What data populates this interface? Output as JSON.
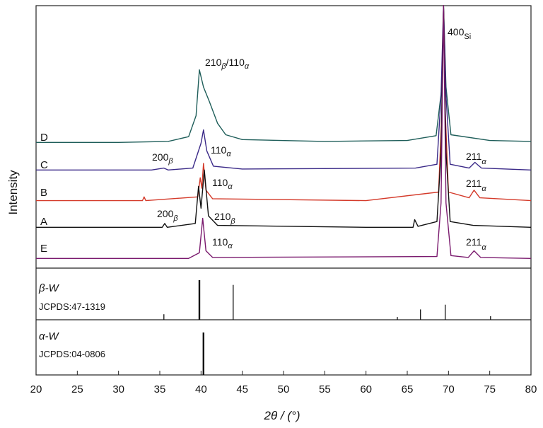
{
  "chart_data": {
    "type": "line",
    "ylabel": "Intensity",
    "xlabel": "2θ / (°)",
    "xlim": [
      20,
      80
    ],
    "xticks": [
      "20",
      "25",
      "30",
      "35",
      "40",
      "45",
      "50",
      "55",
      "60",
      "65",
      "70",
      "75",
      "80"
    ],
    "series": [
      {
        "name": "D",
        "color": "#1f5e5a",
        "peaks": [
          [
            39.8,
            60,
            0.35
          ],
          [
            40.5,
            38,
            0.9
          ],
          [
            42,
            12,
            1.5
          ],
          [
            69.4,
            300,
            0.12
          ],
          [
            69.9,
            40,
            0.25
          ]
        ],
        "points": [
          [
            20,
            2
          ],
          [
            30,
            2
          ],
          [
            36,
            3
          ],
          [
            38.5,
            8
          ],
          [
            39.4,
            30
          ],
          [
            39.8,
            78
          ],
          [
            40.3,
            60
          ],
          [
            41,
            45
          ],
          [
            42,
            22
          ],
          [
            43,
            10
          ],
          [
            45,
            5
          ],
          [
            55,
            3
          ],
          [
            65,
            4
          ],
          [
            68.5,
            9
          ],
          [
            69.2,
            60
          ],
          [
            69.4,
            300
          ],
          [
            69.7,
            60
          ],
          [
            70.3,
            10
          ],
          [
            75,
            4
          ],
          [
            80,
            3
          ]
        ]
      },
      {
        "name": "C",
        "color": "#3b2a88",
        "points": [
          [
            20,
            2
          ],
          [
            34,
            2
          ],
          [
            35.5,
            4
          ],
          [
            36,
            2
          ],
          [
            39,
            4
          ],
          [
            40.0,
            30
          ],
          [
            40.3,
            44
          ],
          [
            40.7,
            22
          ],
          [
            41.5,
            6
          ],
          [
            45,
            3
          ],
          [
            66,
            4
          ],
          [
            68.6,
            8
          ],
          [
            69.1,
            80
          ],
          [
            69.4,
            300
          ],
          [
            69.7,
            80
          ],
          [
            70.2,
            8
          ],
          [
            72.5,
            4
          ],
          [
            73.2,
            10
          ],
          [
            74,
            4
          ],
          [
            80,
            2
          ]
        ]
      },
      {
        "name": "B",
        "color": "#d43a2a",
        "points": [
          [
            20,
            1
          ],
          [
            32.9,
            1
          ],
          [
            33.1,
            5
          ],
          [
            33.3,
            1
          ],
          [
            39.6,
            5
          ],
          [
            39.9,
            25
          ],
          [
            40.1,
            14
          ],
          [
            40.3,
            40
          ],
          [
            40.6,
            12
          ],
          [
            41.4,
            3
          ],
          [
            60,
            1
          ],
          [
            68.8,
            10
          ],
          [
            69.2,
            95
          ],
          [
            69.4,
            300
          ],
          [
            69.6,
            95
          ],
          [
            70,
            10
          ],
          [
            72.5,
            4
          ],
          [
            73.1,
            12
          ],
          [
            73.8,
            4
          ],
          [
            80,
            1
          ]
        ]
      },
      {
        "name": "A",
        "color": "#111111",
        "points": [
          [
            20,
            2
          ],
          [
            35.3,
            2
          ],
          [
            35.6,
            6
          ],
          [
            35.9,
            2
          ],
          [
            39.3,
            6
          ],
          [
            39.7,
            45
          ],
          [
            40.0,
            22
          ],
          [
            40.4,
            62
          ],
          [
            40.9,
            14
          ],
          [
            42,
            4
          ],
          [
            60,
            2
          ],
          [
            65.7,
            2
          ],
          [
            65.9,
            10
          ],
          [
            66.3,
            3
          ],
          [
            68.6,
            8
          ],
          [
            69.1,
            80
          ],
          [
            69.4,
            300
          ],
          [
            69.7,
            80
          ],
          [
            70.2,
            8
          ],
          [
            73,
            4
          ],
          [
            80,
            2
          ]
        ]
      },
      {
        "name": "E",
        "color": "#7a1a6e",
        "points": [
          [
            20,
            2
          ],
          [
            38.5,
            2
          ],
          [
            39.8,
            8
          ],
          [
            40.2,
            44
          ],
          [
            40.6,
            10
          ],
          [
            41.4,
            3
          ],
          [
            68.6,
            4
          ],
          [
            69.1,
            60
          ],
          [
            69.4,
            300
          ],
          [
            69.7,
            60
          ],
          [
            70.3,
            5
          ],
          [
            72.4,
            3
          ],
          [
            73.1,
            10
          ],
          [
            73.9,
            3
          ],
          [
            80,
            2
          ]
        ]
      }
    ],
    "reference_patterns": [
      {
        "name": "β-W",
        "card": "JCPDS:47-1319",
        "lines": [
          [
            35.5,
            0.14
          ],
          [
            39.8,
            1.0
          ],
          [
            43.9,
            0.88
          ],
          [
            63.8,
            0.07
          ],
          [
            66.6,
            0.26
          ],
          [
            69.6,
            0.38
          ],
          [
            75.1,
            0.09
          ]
        ]
      },
      {
        "name": "α-W",
        "card": "JCPDS:04-0806",
        "lines": [
          [
            40.3,
            1.0
          ]
        ]
      }
    ],
    "annotations": [
      {
        "base": "210",
        "sub": "β",
        "base2": "/110",
        "sub2": "α"
      },
      {
        "base": "400",
        "sub": "Si"
      },
      {
        "base": "200",
        "sub": "β"
      },
      {
        "base": "110",
        "sub": "α"
      },
      {
        "base": "211",
        "sub": "α"
      },
      {
        "base": "110",
        "sub": "α"
      },
      {
        "base": "211",
        "sub": "α"
      },
      {
        "base": "200",
        "sub": "β"
      },
      {
        "base": "210",
        "sub": "β"
      },
      {
        "base": "110",
        "sub": "α"
      },
      {
        "base": "211",
        "sub": "α"
      }
    ]
  }
}
